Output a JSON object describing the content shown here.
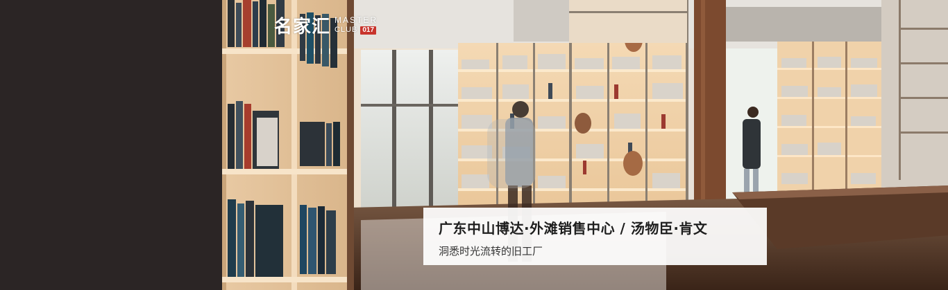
{
  "logo": {
    "cn": "名家汇",
    "en_line1": "MASTER",
    "en_club": "CLUB",
    "en_number": "017"
  },
  "caption": {
    "title": "广东中山博达·外滩销售中心 / 汤物臣·肯文",
    "subtitle": "洞悉时光流转的旧工厂"
  },
  "colors": {
    "left_panel": "#2b2525",
    "logo_badge": "#c8342c",
    "caption_bg": "#ffffff"
  }
}
